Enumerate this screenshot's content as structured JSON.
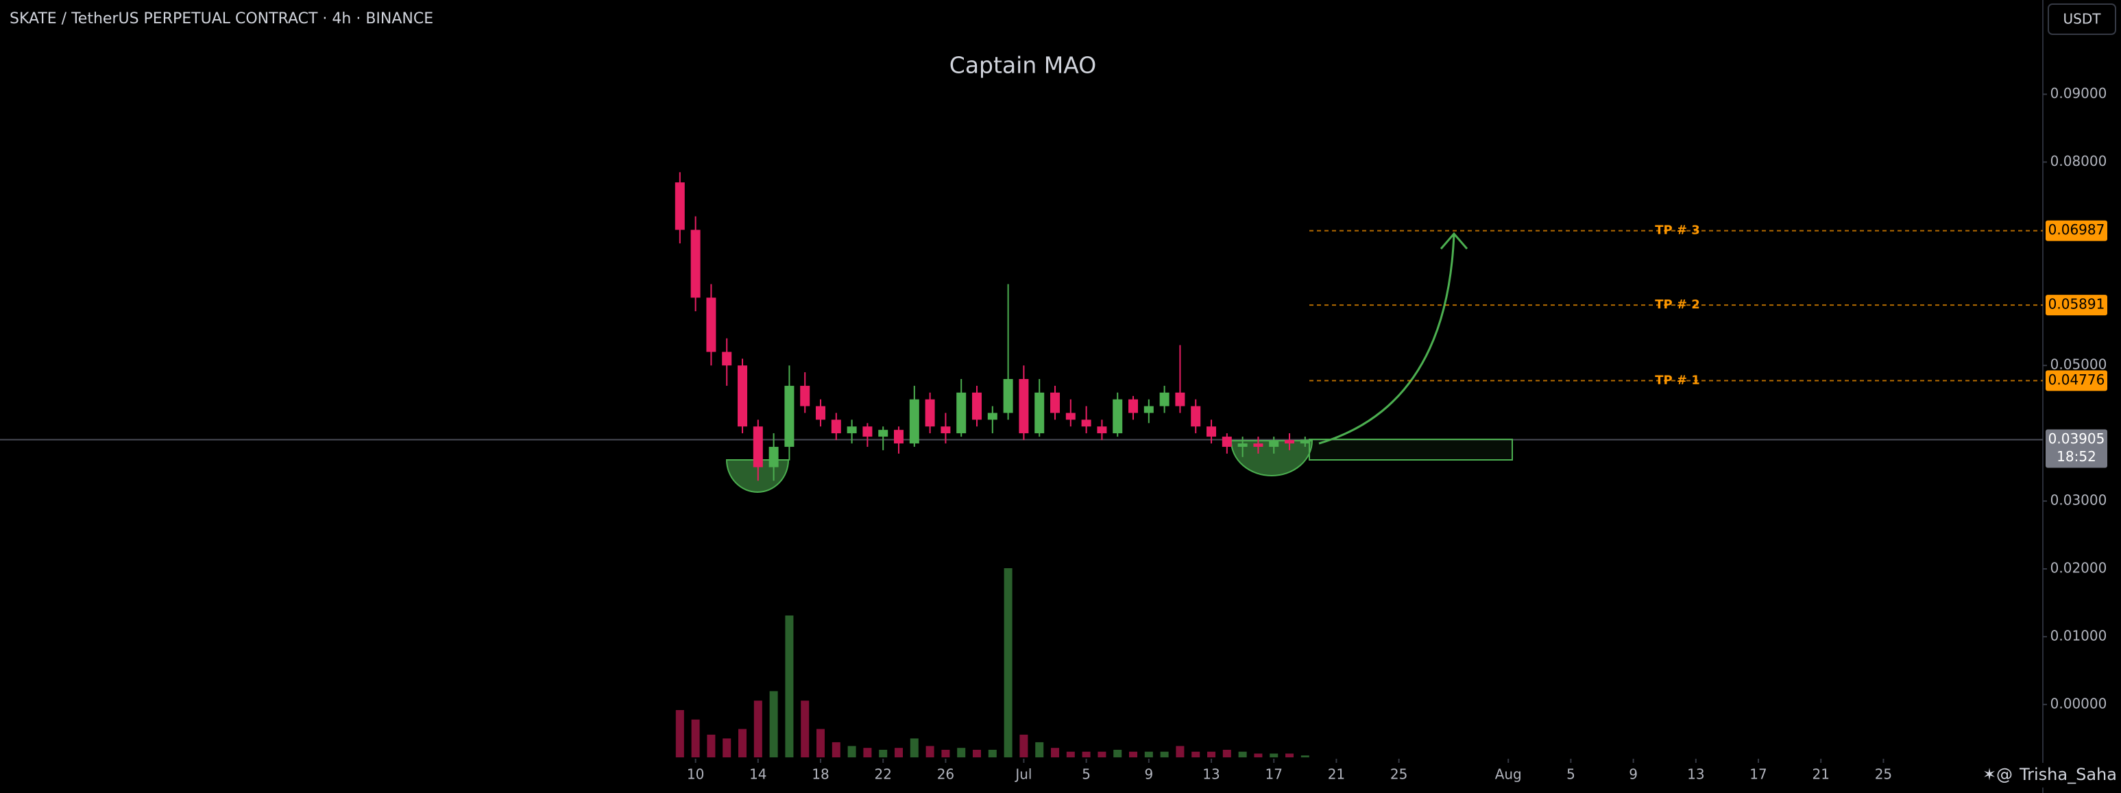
{
  "chart_data": {
    "type": "candlestick",
    "header": "SKATE / TetherUS PERPETUAL CONTRACT · 4h · BINANCE",
    "title": "Captain MAO",
    "currency": "USDT",
    "watermark": "Trisha_Saha",
    "up_color": "#4caf50",
    "down_color": "#e91e63",
    "x": [
      -1,
      0,
      1,
      2,
      3,
      4,
      5,
      6,
      7,
      8,
      9,
      10,
      11,
      12,
      13,
      14,
      15,
      16,
      17,
      18,
      19,
      20,
      21,
      22,
      23,
      24,
      25,
      26,
      27,
      28,
      29,
      30,
      31,
      32,
      33,
      34,
      35,
      36,
      37,
      38,
      39
    ],
    "open": [
      0.077,
      0.07,
      0.06,
      0.052,
      0.05,
      0.041,
      0.035,
      0.038,
      0.047,
      0.044,
      0.042,
      0.04,
      0.041,
      0.0395,
      0.0405,
      0.0385,
      0.045,
      0.041,
      0.04,
      0.046,
      0.042,
      0.043,
      0.048,
      0.04,
      0.046,
      0.043,
      0.042,
      0.041,
      0.04,
      0.045,
      0.043,
      0.044,
      0.046,
      0.044,
      0.041,
      0.0395,
      0.038,
      0.0385,
      0.038,
      0.039,
      0.0385
    ],
    "high": [
      0.0785,
      0.072,
      0.062,
      0.054,
      0.051,
      0.042,
      0.04,
      0.05,
      0.049,
      0.045,
      0.043,
      0.042,
      0.0415,
      0.041,
      0.041,
      0.047,
      0.046,
      0.043,
      0.048,
      0.047,
      0.044,
      0.062,
      0.05,
      0.048,
      0.047,
      0.045,
      0.044,
      0.042,
      0.046,
      0.0455,
      0.045,
      0.047,
      0.053,
      0.045,
      0.042,
      0.04,
      0.0395,
      0.0395,
      0.0395,
      0.04,
      0.0395
    ],
    "low": [
      0.068,
      0.058,
      0.05,
      0.047,
      0.04,
      0.033,
      0.033,
      0.036,
      0.043,
      0.041,
      0.039,
      0.0385,
      0.038,
      0.0375,
      0.037,
      0.038,
      0.04,
      0.0385,
      0.0395,
      0.041,
      0.04,
      0.042,
      0.039,
      0.0395,
      0.042,
      0.041,
      0.04,
      0.039,
      0.0395,
      0.042,
      0.0415,
      0.043,
      0.043,
      0.04,
      0.0385,
      0.037,
      0.0365,
      0.037,
      0.037,
      0.0375,
      0.038
    ],
    "close": [
      0.07,
      0.06,
      0.052,
      0.05,
      0.041,
      0.035,
      0.038,
      0.047,
      0.044,
      0.042,
      0.04,
      0.041,
      0.0395,
      0.0405,
      0.0385,
      0.045,
      0.041,
      0.04,
      0.046,
      0.042,
      0.043,
      0.048,
      0.04,
      0.046,
      0.043,
      0.042,
      0.041,
      0.04,
      0.045,
      0.043,
      0.044,
      0.046,
      0.044,
      0.041,
      0.0395,
      0.038,
      0.0385,
      0.038,
      0.039,
      0.0385,
      0.03905
    ],
    "volume": [
      25,
      20,
      12,
      10,
      15,
      30,
      35,
      75,
      30,
      15,
      8,
      6,
      5,
      4,
      5,
      10,
      6,
      4,
      5,
      4,
      4,
      100,
      12,
      8,
      5,
      3,
      3,
      3,
      4,
      3,
      3,
      3,
      6,
      3,
      3,
      4,
      3,
      2,
      2,
      2,
      1
    ],
    "vlim": [
      0,
      100
    ],
    "xlim": [
      -44.5,
      86.2
    ],
    "ylim": [
      -0.0078,
      0.1039
    ],
    "xticks": [
      {
        "value": 0,
        "label": "10"
      },
      {
        "value": 4,
        "label": "14"
      },
      {
        "value": 8,
        "label": "18"
      },
      {
        "value": 12,
        "label": "22"
      },
      {
        "value": 16,
        "label": "26"
      },
      {
        "value": 21,
        "label": "Jul"
      },
      {
        "value": 25,
        "label": "5"
      },
      {
        "value": 29,
        "label": "9"
      },
      {
        "value": 33,
        "label": "13"
      },
      {
        "value": 37,
        "label": "17"
      },
      {
        "value": 41,
        "label": "21"
      },
      {
        "value": 45,
        "label": "25"
      },
      {
        "value": 52,
        "label": "Aug"
      },
      {
        "value": 56,
        "label": "5"
      },
      {
        "value": 60,
        "label": "9"
      },
      {
        "value": 64,
        "label": "13"
      },
      {
        "value": 68,
        "label": "17"
      },
      {
        "value": 72,
        "label": "21"
      },
      {
        "value": 76,
        "label": "25"
      }
    ],
    "yticks": [
      {
        "value": 0,
        "label": "0.00000"
      },
      {
        "value": 0.01,
        "label": "0.01000"
      },
      {
        "value": 0.02,
        "label": "0.02000"
      },
      {
        "value": 0.03,
        "label": "0.03000"
      },
      {
        "value": 0.05,
        "label": "0.05000"
      },
      {
        "value": 0.08,
        "label": "0.08000"
      },
      {
        "value": 0.09,
        "label": "0.09000"
      }
    ],
    "levels": [
      {
        "label": "TP # 3",
        "value": 0.06987
      },
      {
        "label": "TP # 2",
        "value": 0.05891
      },
      {
        "label": "TP # 1",
        "value": 0.04776
      }
    ],
    "level_color": "#ff9800",
    "last_price": 0.03905,
    "countdown": "18:52"
  }
}
